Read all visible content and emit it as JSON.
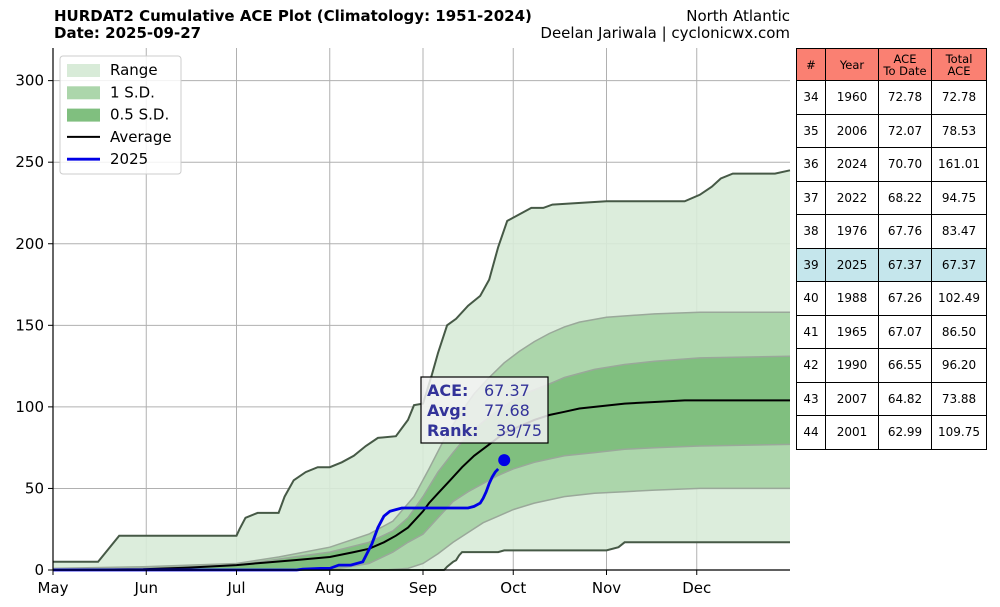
{
  "header": {
    "title_line1": "HURDAT2 Cumulative ACE Plot (Climatology: 1951-2024)",
    "title_line2": "Date: 2025-09-27",
    "region": "North Atlantic",
    "credit": "Deelan Jariwala | cyclonicwx.com"
  },
  "chart_data": {
    "type": "area",
    "x_unit": "day of year (May 1 = 0)",
    "x_ticks": [
      {
        "label": "May",
        "day": 0
      },
      {
        "label": "Jun",
        "day": 31
      },
      {
        "label": "Jul",
        "day": 61
      },
      {
        "label": "Aug",
        "day": 92
      },
      {
        "label": "Sep",
        "day": 123
      },
      {
        "label": "Oct",
        "day": 153
      },
      {
        "label": "Nov",
        "day": 184
      },
      {
        "label": "Dec",
        "day": 214
      }
    ],
    "xlim": [
      0,
      245
    ],
    "ylim": [
      0,
      320
    ],
    "y_ticks": [
      0,
      50,
      100,
      150,
      200,
      250,
      300
    ],
    "grid": true,
    "legend_position": "top-left",
    "legend": [
      "Range",
      "1 S.D.",
      "0.5 S.D.",
      "Average",
      "2025"
    ],
    "colors": {
      "range": "#d8ebd8",
      "sd1": "#acd6ab",
      "sd05": "#80bf7f",
      "band_edge": "#9aa89a",
      "range_edge": "#465946",
      "average": "#000000",
      "current": "#0000e6",
      "marker": "#0000e6"
    },
    "range_max": [
      [
        0,
        5
      ],
      [
        15,
        5
      ],
      [
        22,
        21
      ],
      [
        30,
        21
      ],
      [
        61,
        21
      ],
      [
        62,
        25
      ],
      [
        64,
        32
      ],
      [
        68,
        35
      ],
      [
        75,
        35
      ],
      [
        77,
        45
      ],
      [
        80,
        55
      ],
      [
        84,
        60
      ],
      [
        88,
        63
      ],
      [
        92,
        63
      ],
      [
        96,
        66
      ],
      [
        100,
        70
      ],
      [
        104,
        76
      ],
      [
        108,
        81
      ],
      [
        114,
        82
      ],
      [
        118,
        92
      ],
      [
        120,
        101
      ],
      [
        123,
        102
      ],
      [
        126,
        120
      ],
      [
        128,
        133
      ],
      [
        131,
        150
      ],
      [
        134,
        154
      ],
      [
        138,
        162
      ],
      [
        142,
        168
      ],
      [
        145,
        178
      ],
      [
        148,
        198
      ],
      [
        151,
        214
      ],
      [
        156,
        219
      ],
      [
        159,
        222
      ],
      [
        163,
        222
      ],
      [
        166,
        224
      ],
      [
        184,
        226
      ],
      [
        210,
        226
      ],
      [
        215,
        230
      ],
      [
        219,
        235
      ],
      [
        222,
        240
      ],
      [
        226,
        243
      ],
      [
        240,
        243
      ],
      [
        245,
        245
      ]
    ],
    "range_min": [
      [
        0,
        0
      ],
      [
        130,
        0
      ],
      [
        131,
        2
      ],
      [
        133,
        5
      ],
      [
        134,
        6
      ],
      [
        135,
        9
      ],
      [
        136,
        11
      ],
      [
        148,
        11
      ],
      [
        150,
        12
      ],
      [
        184,
        12
      ],
      [
        188,
        14
      ],
      [
        190,
        17
      ],
      [
        245,
        17
      ]
    ],
    "sd1_upper": [
      [
        0,
        1
      ],
      [
        30,
        2
      ],
      [
        61,
        4
      ],
      [
        75,
        8
      ],
      [
        92,
        14
      ],
      [
        105,
        22
      ],
      [
        113,
        30
      ],
      [
        120,
        45
      ],
      [
        125,
        62
      ],
      [
        130,
        80
      ],
      [
        135,
        95
      ],
      [
        140,
        108
      ],
      [
        145,
        118
      ],
      [
        150,
        127
      ],
      [
        155,
        134
      ],
      [
        160,
        140
      ],
      [
        165,
        145
      ],
      [
        170,
        149
      ],
      [
        175,
        152
      ],
      [
        184,
        155
      ],
      [
        200,
        157
      ],
      [
        215,
        158
      ],
      [
        245,
        158
      ]
    ],
    "sd1_lower": [
      [
        0,
        0
      ],
      [
        100,
        0
      ],
      [
        110,
        0
      ],
      [
        118,
        1
      ],
      [
        123,
        4
      ],
      [
        128,
        10
      ],
      [
        133,
        17
      ],
      [
        138,
        23
      ],
      [
        143,
        29
      ],
      [
        148,
        33
      ],
      [
        153,
        37
      ],
      [
        160,
        41
      ],
      [
        170,
        45
      ],
      [
        180,
        47
      ],
      [
        190,
        48
      ],
      [
        200,
        49
      ],
      [
        215,
        50
      ],
      [
        245,
        50
      ]
    ],
    "sd05_upper": [
      [
        0,
        0
      ],
      [
        30,
        1
      ],
      [
        61,
        3
      ],
      [
        80,
        8
      ],
      [
        92,
        11
      ],
      [
        105,
        17
      ],
      [
        113,
        24
      ],
      [
        118,
        32
      ],
      [
        123,
        45
      ],
      [
        128,
        60
      ],
      [
        133,
        72
      ],
      [
        138,
        83
      ],
      [
        143,
        91
      ],
      [
        148,
        98
      ],
      [
        153,
        104
      ],
      [
        158,
        109
      ],
      [
        165,
        114
      ],
      [
        170,
        118
      ],
      [
        180,
        123
      ],
      [
        190,
        126
      ],
      [
        200,
        128
      ],
      [
        215,
        130
      ],
      [
        245,
        131
      ]
    ],
    "sd05_lower": [
      [
        0,
        0
      ],
      [
        92,
        0
      ],
      [
        105,
        4
      ],
      [
        113,
        11
      ],
      [
        118,
        17
      ],
      [
        123,
        22
      ],
      [
        128,
        32
      ],
      [
        133,
        42
      ],
      [
        138,
        48
      ],
      [
        143,
        53
      ],
      [
        148,
        58
      ],
      [
        153,
        62
      ],
      [
        160,
        66
      ],
      [
        170,
        70
      ],
      [
        180,
        72
      ],
      [
        190,
        74
      ],
      [
        200,
        75
      ],
      [
        215,
        76
      ],
      [
        245,
        77
      ]
    ],
    "average": [
      [
        0,
        0
      ],
      [
        30,
        0.5
      ],
      [
        45,
        1.5
      ],
      [
        61,
        3
      ],
      [
        70,
        4.5
      ],
      [
        80,
        6
      ],
      [
        92,
        8
      ],
      [
        100,
        11
      ],
      [
        105,
        13
      ],
      [
        110,
        17
      ],
      [
        114,
        21
      ],
      [
        118,
        26
      ],
      [
        121,
        32
      ],
      [
        123,
        36
      ],
      [
        125,
        41
      ],
      [
        128,
        47
      ],
      [
        132,
        55
      ],
      [
        136,
        63
      ],
      [
        140,
        70
      ],
      [
        145,
        77
      ],
      [
        150,
        84
      ],
      [
        155,
        88
      ],
      [
        160,
        92
      ],
      [
        165,
        95
      ],
      [
        170,
        97
      ],
      [
        175,
        99
      ],
      [
        180,
        100
      ],
      [
        190,
        102
      ],
      [
        200,
        103
      ],
      [
        210,
        104
      ],
      [
        230,
        104
      ],
      [
        245,
        104
      ]
    ],
    "series_2025": [
      [
        0,
        0
      ],
      [
        81,
        0
      ],
      [
        83,
        0.5
      ],
      [
        89,
        1
      ],
      [
        92,
        1
      ],
      [
        95,
        3
      ],
      [
        99,
        3
      ],
      [
        103,
        5
      ],
      [
        106,
        16
      ],
      [
        108,
        26
      ],
      [
        110,
        33
      ],
      [
        112,
        36
      ],
      [
        114,
        37
      ],
      [
        116,
        38
      ],
      [
        121,
        38
      ],
      [
        128,
        38
      ],
      [
        138,
        38
      ],
      [
        140,
        39
      ],
      [
        142,
        41
      ],
      [
        143,
        44
      ],
      [
        144,
        48
      ],
      [
        145,
        53
      ],
      [
        146,
        57
      ],
      [
        147,
        60
      ],
      [
        148,
        62
      ]
    ],
    "current_point": {
      "day": 150,
      "value": 67.37
    },
    "annotation": {
      "ace_label": "ACE:",
      "ace_value": "67.37",
      "avg_label": "Avg:",
      "avg_value": "77.68",
      "rank_label": "Rank:",
      "rank_value": "39/75"
    }
  },
  "table": {
    "headers": [
      "#",
      "Year",
      [
        "ACE",
        "To Date"
      ],
      [
        "Total",
        "ACE"
      ]
    ],
    "rows": [
      {
        "rank": "34",
        "year": "1960",
        "ace_to_date": "72.78",
        "total_ace": "72.78"
      },
      {
        "rank": "35",
        "year": "2006",
        "ace_to_date": "72.07",
        "total_ace": "78.53"
      },
      {
        "rank": "36",
        "year": "2024",
        "ace_to_date": "70.70",
        "total_ace": "161.01"
      },
      {
        "rank": "37",
        "year": "2022",
        "ace_to_date": "68.22",
        "total_ace": "94.75"
      },
      {
        "rank": "38",
        "year": "1976",
        "ace_to_date": "67.76",
        "total_ace": "83.47"
      },
      {
        "rank": "39",
        "year": "2025",
        "ace_to_date": "67.37",
        "total_ace": "67.37",
        "highlight": true
      },
      {
        "rank": "40",
        "year": "1988",
        "ace_to_date": "67.26",
        "total_ace": "102.49"
      },
      {
        "rank": "41",
        "year": "1965",
        "ace_to_date": "67.07",
        "total_ace": "86.50"
      },
      {
        "rank": "42",
        "year": "1990",
        "ace_to_date": "66.55",
        "total_ace": "96.20"
      },
      {
        "rank": "43",
        "year": "2007",
        "ace_to_date": "64.82",
        "total_ace": "73.88"
      },
      {
        "rank": "44",
        "year": "2001",
        "ace_to_date": "62.99",
        "total_ace": "109.75"
      }
    ]
  }
}
